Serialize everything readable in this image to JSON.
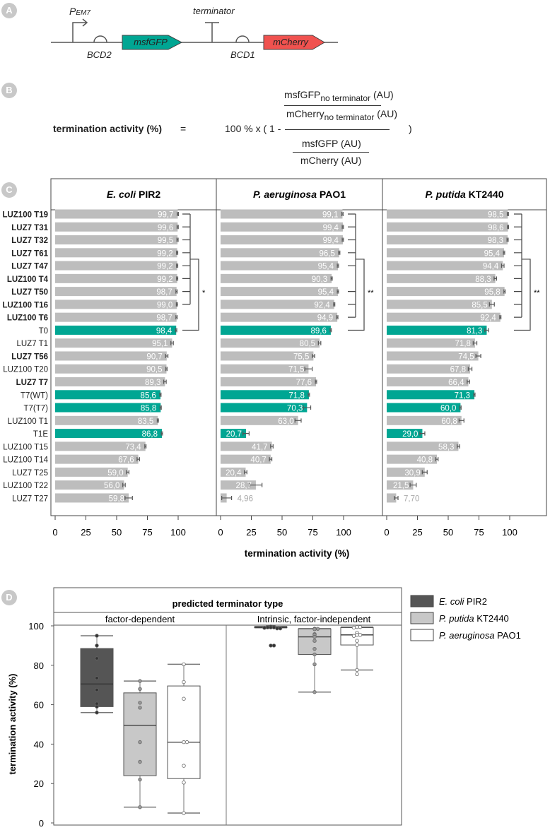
{
  "panels": {
    "a": "A",
    "b": "B",
    "c": "C",
    "d": "D"
  },
  "construct": {
    "promoter": "P",
    "promoter_sub": "EM7",
    "rbs1": "BCD2",
    "gene1": "msfGFP",
    "terminator": "terminator",
    "rbs2": "BCD1",
    "gene2": "mCherry",
    "gene1_color": "#00a693",
    "gene2_color": "#f0524f"
  },
  "formula": {
    "lhs": "termination activity (%)",
    "eq": "=",
    "prefix": "100 % x ( 1 -",
    "num_top": "msfGFP",
    "num_top_sub": "no terminator",
    "num_bot": "mCherry",
    "num_bot_sub": "no terminator",
    "au": "(AU)",
    "den_top": "msfGFP (AU)",
    "den_bot": "mCherry (AU)",
    "close": ")"
  },
  "chart_data": [
    {
      "type": "bar",
      "orientation": "horizontal",
      "xlabel": "termination activity (%)",
      "xlim": [
        0,
        100
      ],
      "xticks": [
        0,
        25,
        50,
        75,
        100
      ],
      "categories": [
        "LUZ100 T19",
        "LUZ7 T31",
        "LUZ7 T32",
        "LUZ7 T61",
        "LUZ7 T47",
        "LUZ100 T4",
        "LUZ7 T50",
        "LUZ100 T16",
        "LUZ100 T6",
        "T0",
        "LUZ7 T1",
        "LUZ7 T56",
        "LUZ100 T20",
        "LUZ7 T7",
        "T7(WT)",
        "T7(T7)",
        "LUZ100 T1",
        "T1E",
        "LUZ100 T15",
        "LUZ100 T14",
        "LUZ7 T25",
        "LUZ100 T22",
        "LUZ7 T27"
      ],
      "bold": [
        0,
        1,
        2,
        3,
        4,
        5,
        6,
        7,
        8,
        11,
        13
      ],
      "highlight": [
        9,
        14,
        15,
        17
      ],
      "colors": {
        "bar": "#bdbdbd",
        "highlight": "#00a693"
      },
      "series": [
        {
          "name": "E. coli",
          "name_rest": " PIR2",
          "labels": [
            "99,7",
            "99,6",
            "99,5",
            "99,2",
            "99,2",
            "99,2",
            "98,7",
            "99,0",
            "98,7",
            "98,4",
            "95,1",
            "90,7",
            "90,5",
            "89,3",
            "85,6",
            "85,8",
            "83,5",
            "86,8",
            "73,4",
            "67,6",
            "59,0",
            "56,0",
            "59,8"
          ],
          "values": [
            99.7,
            99.6,
            99.5,
            99.2,
            99.2,
            99.2,
            98.7,
            99.0,
            98.7,
            98.4,
            95.1,
            90.7,
            90.5,
            89.3,
            85.6,
            85.8,
            83.5,
            86.8,
            73.4,
            67.6,
            59.0,
            56.0,
            59.8
          ],
          "errors": [
            0.5,
            0.5,
            0.5,
            0.5,
            0.5,
            0.5,
            0.5,
            0.5,
            0.5,
            0.5,
            1,
            1,
            0.5,
            1,
            0.5,
            0.5,
            0.5,
            0.5,
            0.5,
            1,
            1,
            1,
            3
          ],
          "sig": "*"
        },
        {
          "name": "P. aeruginosa",
          "name_rest": " PAO1",
          "labels": [
            "99,1",
            "99,4",
            "99,4",
            "96,5",
            "95,4",
            "90,3",
            "95,4",
            "92,4",
            "94,9",
            "89,6",
            "80,5",
            "75,5",
            "71,5",
            "77,6",
            "71,8",
            "70,3",
            "63,0",
            "20,7",
            "41,7",
            "40,7",
            "20,4",
            "28,7",
            "4,96"
          ],
          "values": [
            99.1,
            99.4,
            99.4,
            96.5,
            95.4,
            90.3,
            95.4,
            92.4,
            94.9,
            89.6,
            80.5,
            75.5,
            71.5,
            77.6,
            71.8,
            70.3,
            63.0,
            20.7,
            41.7,
            40.7,
            20.4,
            28.7,
            4.96
          ],
          "errors": [
            0.5,
            0.5,
            0.5,
            0.5,
            0.5,
            0.5,
            0.5,
            0.5,
            0.5,
            0.5,
            1,
            1,
            3,
            0.5,
            0.5,
            3,
            2.5,
            2.5,
            1,
            1,
            1,
            5,
            4
          ],
          "sig": "**"
        },
        {
          "name": "P. putida",
          "name_rest": " KT2440",
          "labels": [
            "98,5",
            "98,6",
            "98,3",
            "95,4",
            "94,4",
            "88,3",
            "95,8",
            "85,5",
            "92,4",
            "81,3",
            "71,8",
            "74,5",
            "67,8",
            "66,4",
            "71,3",
            "60,0",
            "60,8",
            "29,0",
            "58,3",
            "40,8",
            "30,9",
            "21,5",
            "7,70"
          ],
          "values": [
            98.5,
            98.6,
            98.3,
            95.4,
            94.4,
            88.3,
            95.8,
            85.5,
            92.4,
            81.3,
            71.8,
            74.5,
            67.8,
            66.4,
            71.3,
            60.0,
            60.8,
            29.0,
            58.3,
            40.8,
            30.9,
            21.5,
            7.7
          ],
          "errors": [
            0.5,
            0.5,
            0.5,
            0.5,
            1,
            1,
            0.5,
            2,
            0.5,
            1.5,
            1.5,
            2,
            1.5,
            1,
            0.5,
            0.5,
            2,
            2,
            1,
            1,
            2,
            2.5,
            1.5
          ],
          "sig": "**"
        }
      ]
    },
    {
      "type": "box",
      "title": "predicted terminator type",
      "groups": [
        "factor-dependent",
        "Intrinsic, factor-independent"
      ],
      "ylabel": "termination activity (%)",
      "ylim": [
        0,
        100
      ],
      "yticks": [
        0,
        20,
        40,
        60,
        80,
        100
      ],
      "legend": [
        {
          "name": "E. coli",
          "rest": " PIR2",
          "color": "#555555"
        },
        {
          "name": "P. putida",
          "rest": " KT2440",
          "color": "#c8c8c8"
        },
        {
          "name": "P. aeruginosa",
          "rest": " PAO1",
          "color": "#ffffff"
        }
      ],
      "legend_position": "right",
      "boxes": [
        {
          "group": 0,
          "series": 0,
          "q1": 59,
          "median": 70.5,
          "q3": 88.5,
          "wlo": 56,
          "whi": 95,
          "points": [
            95,
            90,
            83.5,
            73.5,
            67.5,
            60.5,
            59,
            56
          ]
        },
        {
          "group": 0,
          "series": 1,
          "q1": 24,
          "median": 49.5,
          "q3": 66,
          "wlo": 8,
          "whi": 72,
          "points": [
            72,
            68,
            61,
            58.5,
            41,
            31,
            22,
            8
          ]
        },
        {
          "group": 0,
          "series": 2,
          "q1": 22.5,
          "median": 41,
          "q3": 69.5,
          "wlo": 5,
          "whi": 80.5,
          "points": [
            80.5,
            71.5,
            63,
            41,
            41,
            29,
            20.5,
            5
          ]
        },
        {
          "group": 1,
          "series": 0,
          "q1": 99.2,
          "median": 99.3,
          "q3": 99.5,
          "wlo": 99,
          "whi": 99.7,
          "points": [
            99.7,
            99.6,
            99.5,
            99.2,
            99.2,
            99.2,
            98.7,
            99.0,
            98.7,
            90,
            90
          ]
        },
        {
          "group": 1,
          "series": 1,
          "q1": 85.5,
          "median": 94.4,
          "q3": 98.5,
          "wlo": 66.4,
          "whi": 98.6,
          "points": [
            98.6,
            98.5,
            98.3,
            95.8,
            95.4,
            94.4,
            92.4,
            88.3,
            85.5,
            80.5,
            66.4
          ]
        },
        {
          "group": 1,
          "series": 2,
          "q1": 90.3,
          "median": 95.4,
          "q3": 99.1,
          "wlo": 77.6,
          "whi": 99.4,
          "points": [
            99.4,
            99.4,
            99.1,
            96.5,
            95.4,
            95.4,
            94.9,
            92.4,
            90.3,
            77.6,
            75.5
          ]
        }
      ]
    }
  ]
}
